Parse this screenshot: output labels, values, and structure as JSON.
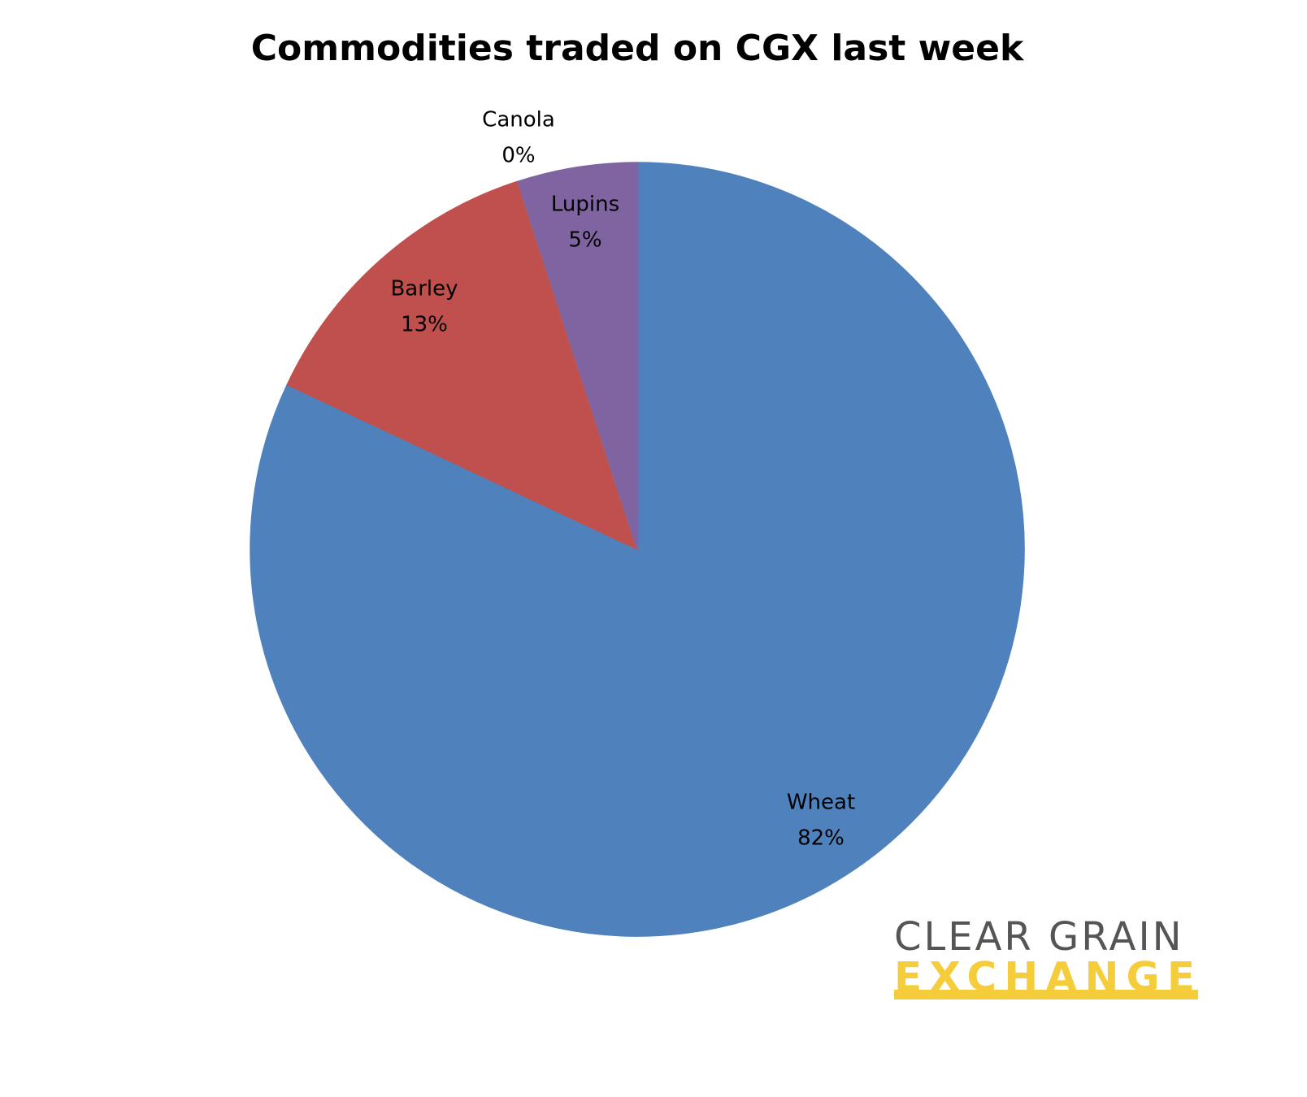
{
  "chart_data": {
    "type": "pie",
    "title": "Commodities traded on CGX last week",
    "categories": [
      "Wheat",
      "Barley",
      "Canola",
      "Lupins"
    ],
    "values": [
      82,
      13,
      0,
      5
    ],
    "value_labels": [
      "82%",
      "13%",
      "0%",
      "5%"
    ],
    "colors": [
      "#4f81bd",
      "#c0504d",
      "#9bbb59",
      "#8064a2"
    ]
  },
  "logo": {
    "line1": "CLEAR GRAIN",
    "line2": "EXCHANGE"
  }
}
